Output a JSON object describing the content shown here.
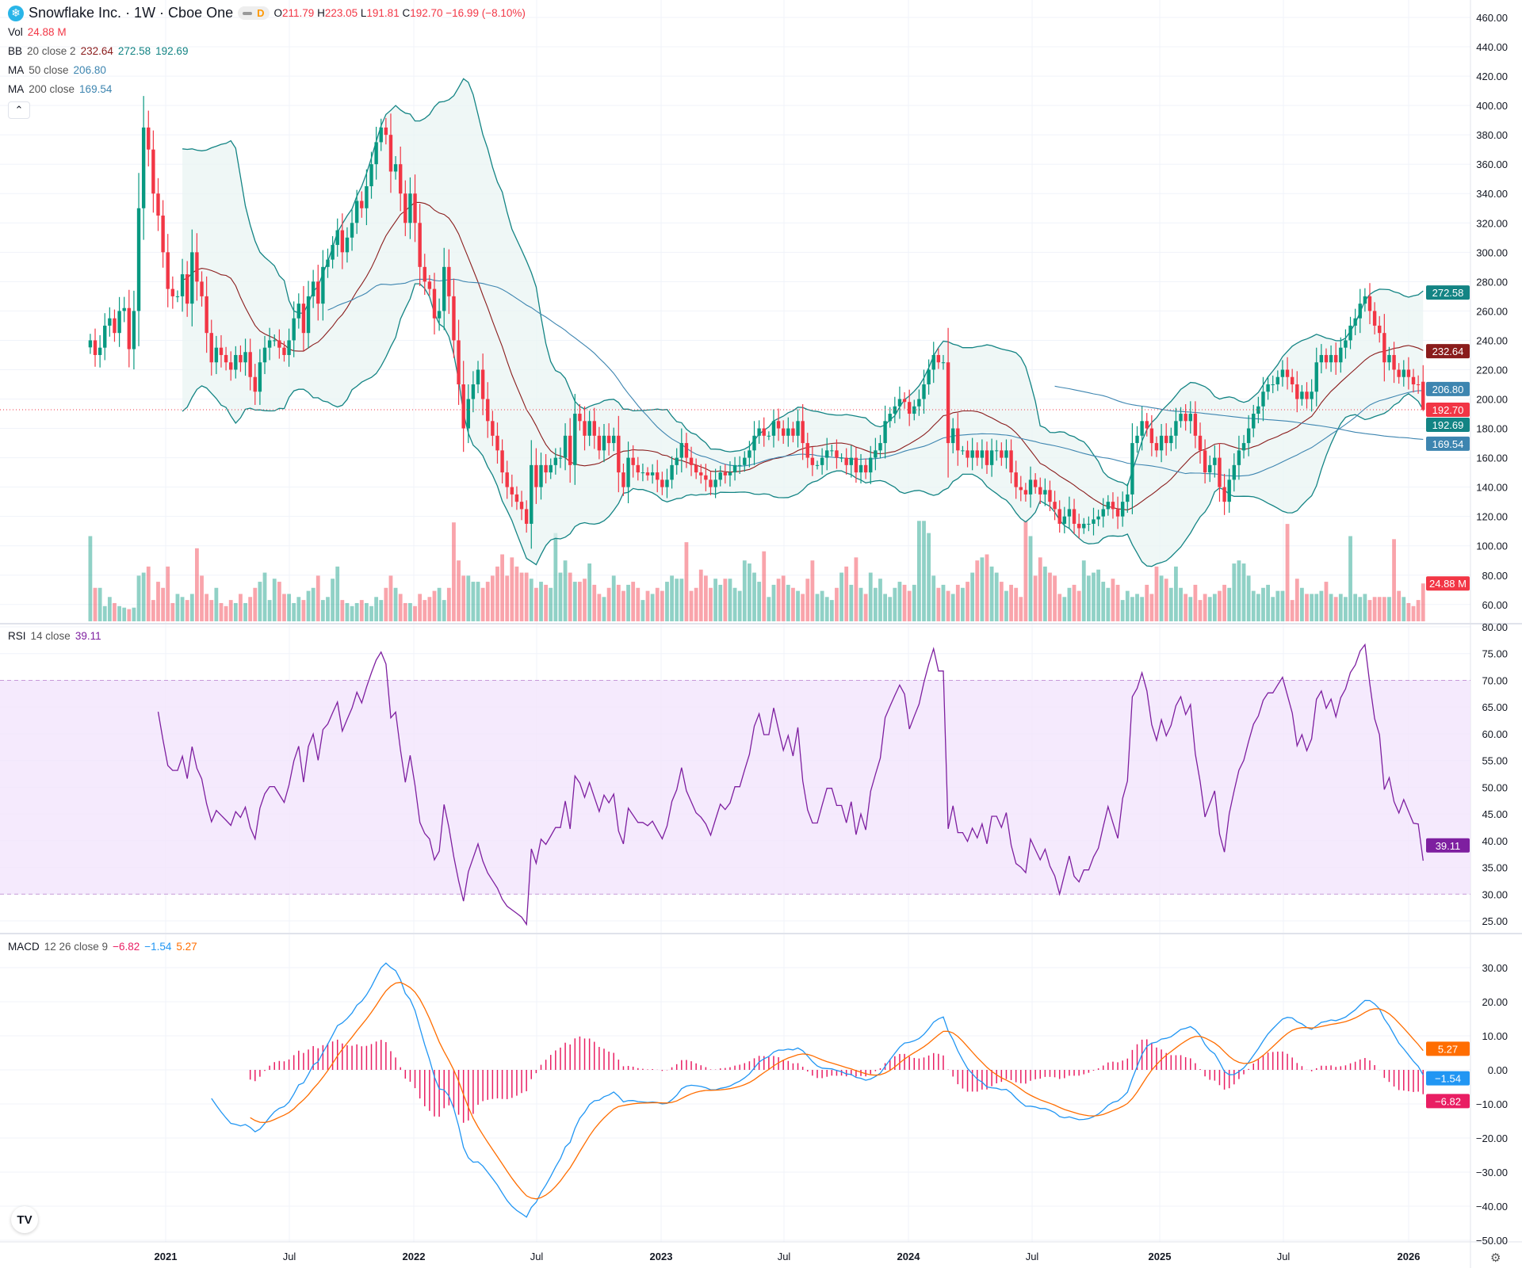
{
  "header": {
    "symbol_title": "Snowflake Inc. · 1W · Cboe One",
    "logo_icon": "snowflake-icon",
    "pill_label": "D",
    "open_label": "O",
    "open": "211.79",
    "high_label": "H",
    "high": "223.05",
    "low_label": "L",
    "low": "191.81",
    "close_label": "C",
    "close": "192.70",
    "change": "−16.99 (−8.10%)"
  },
  "legends": {
    "vol": {
      "label": "Vol",
      "value": "24.88 M"
    },
    "bb": {
      "label": "BB",
      "params": "20 close 2",
      "basis": "232.64",
      "upper": "272.58",
      "lower": "192.69"
    },
    "ma50": {
      "label": "MA",
      "params": "50 close",
      "value": "206.80"
    },
    "ma200": {
      "label": "MA",
      "params": "200 close",
      "value": "169.54"
    },
    "rsi": {
      "label": "RSI",
      "params": "14 close",
      "value": "39.11"
    },
    "macd": {
      "label": "MACD",
      "params": "12 26 close 9",
      "hist": "−6.82",
      "macd": "−1.54",
      "signal": "5.27"
    }
  },
  "colors": {
    "up": "#089981",
    "down": "#f23645",
    "bb_basis": "#8a1c1c",
    "bb_band": "#138484",
    "bb_fill": "#e8f4f2",
    "ma50": "#3d85b0",
    "ma200": "#3d85b0",
    "rsi": "#7e1fa0",
    "rsi_band": "#f3e5fc",
    "macd": "#2196f3",
    "signal": "#ff6d00",
    "hist": "#e91e63"
  },
  "chart_data": {
    "type": "candlestick",
    "interval": "1W",
    "price_axis": {
      "ticks": [
        60,
        80,
        100,
        120,
        140,
        160,
        180,
        200,
        220,
        240,
        260,
        280,
        300,
        320,
        340,
        360,
        380,
        400,
        420,
        440,
        460
      ]
    },
    "rsi_axis": {
      "ticks": [
        25,
        30,
        35,
        40,
        45,
        50,
        55,
        60,
        65,
        70,
        75,
        80
      ],
      "bands": [
        30,
        70
      ]
    },
    "macd_axis": {
      "ticks": [
        -50,
        -40,
        -30,
        -20,
        -10,
        0,
        10,
        20,
        30
      ]
    },
    "time_labels": [
      "2021",
      "Jul",
      "2022",
      "Jul",
      "2023",
      "Jul",
      "2024",
      "Jul",
      "2025",
      "Jul",
      "2026"
    ],
    "last_candle": {
      "open": 211.79,
      "high": 223.05,
      "low": 191.81,
      "close": 192.7
    },
    "closes": [
      240,
      230,
      235,
      250,
      255,
      245,
      260,
      262,
      234,
      260,
      330,
      385,
      370,
      340,
      325,
      300,
      275,
      270,
      270,
      285,
      265,
      300,
      280,
      270,
      245,
      225,
      235,
      230,
      225,
      220,
      230,
      225,
      232,
      215,
      205,
      225,
      235,
      240,
      240,
      235,
      230,
      240,
      255,
      265,
      245,
      270,
      280,
      265,
      290,
      295,
      305,
      315,
      300,
      310,
      320,
      335,
      330,
      345,
      360,
      375,
      385,
      380,
      355,
      360,
      340,
      320,
      340,
      320,
      290,
      280,
      275,
      255,
      260,
      290,
      270,
      240,
      210,
      180,
      200,
      210,
      220,
      200,
      185,
      175,
      165,
      150,
      140,
      135,
      130,
      125,
      115,
      155,
      140,
      155,
      150,
      155,
      160,
      160,
      175,
      155,
      190,
      185,
      175,
      185,
      175,
      165,
      175,
      170,
      175,
      150,
      140,
      160,
      155,
      150,
      150,
      148,
      150,
      145,
      140,
      145,
      155,
      160,
      170,
      160,
      155,
      150,
      148,
      145,
      140,
      145,
      150,
      148,
      150,
      155,
      155,
      160,
      165,
      175,
      180,
      175,
      175,
      185,
      180,
      175,
      180,
      175,
      185,
      170,
      160,
      155,
      155,
      160,
      165,
      165,
      160,
      160,
      155,
      160,
      150,
      155,
      150,
      160,
      165,
      170,
      185,
      190,
      195,
      200,
      198,
      190,
      195,
      200,
      210,
      220,
      230,
      225,
      225,
      170,
      180,
      165,
      165,
      160,
      165,
      160,
      165,
      155,
      165,
      165,
      160,
      165,
      150,
      140,
      138,
      135,
      145,
      140,
      135,
      138,
      130,
      125,
      115,
      120,
      125,
      115,
      112,
      115,
      115,
      118,
      120,
      125,
      130,
      125,
      120,
      130,
      135,
      170,
      175,
      185,
      180,
      170,
      165,
      175,
      170,
      175,
      185,
      190,
      185,
      190,
      175,
      165,
      150,
      155,
      160,
      140,
      130,
      145,
      155,
      165,
      170,
      180,
      190,
      195,
      205,
      210,
      210,
      215,
      220,
      215,
      210,
      200,
      205,
      200,
      205,
      225,
      230,
      225,
      230,
      225,
      235,
      240,
      250,
      255,
      265,
      270,
      260,
      250,
      245,
      225,
      230,
      220,
      215,
      220,
      215,
      210,
      209.69,
      192.7
    ],
    "volumes_millions": [
      56,
      22,
      22,
      10,
      16,
      12,
      10,
      9,
      8,
      9,
      30,
      32,
      36,
      14,
      26,
      22,
      36,
      12,
      18,
      16,
      14,
      18,
      48,
      30,
      18,
      14,
      22,
      12,
      10,
      14,
      12,
      18,
      12,
      16,
      22,
      26,
      32,
      14,
      28,
      26,
      18,
      18,
      12,
      16,
      14,
      20,
      22,
      30,
      14,
      16,
      28,
      36,
      14,
      12,
      10,
      12,
      14,
      12,
      10,
      16,
      14,
      22,
      30,
      22,
      18,
      12,
      12,
      10,
      18,
      14,
      16,
      20,
      22,
      14,
      22,
      65,
      40,
      30,
      30,
      26,
      26,
      22,
      26,
      30,
      36,
      44,
      30,
      42,
      36,
      32,
      32,
      28,
      22,
      26,
      24,
      22,
      58,
      32,
      40,
      32,
      26,
      26,
      28,
      38,
      24,
      18,
      16,
      22,
      30,
      24,
      20,
      24,
      26,
      22,
      14,
      20,
      18,
      22,
      20,
      26,
      30,
      28,
      28,
      52,
      20,
      22,
      34,
      30,
      22,
      28,
      24,
      28,
      28,
      22,
      20,
      40,
      38,
      32,
      26,
      46,
      16,
      24,
      28,
      30,
      24,
      22,
      20,
      18,
      28,
      40,
      18,
      20,
      16,
      14,
      22,
      32,
      36,
      24,
      42,
      22,
      18,
      32,
      22,
      28,
      18,
      16,
      22,
      26,
      24,
      20,
      24,
      66,
      66,
      58,
      30,
      22,
      24,
      20,
      18,
      24,
      22,
      26,
      32,
      40,
      42,
      44,
      36,
      32,
      26,
      20,
      24,
      22,
      16,
      66,
      56,
      30,
      42,
      36,
      32,
      30,
      18,
      16,
      22,
      24,
      20,
      40,
      30,
      32,
      34,
      26,
      22,
      28,
      24,
      14,
      20,
      16,
      18,
      16,
      24,
      18,
      36,
      30,
      28,
      22,
      36,
      22,
      18,
      16,
      24,
      14,
      18,
      16,
      18,
      20,
      24,
      22,
      38,
      40,
      38,
      30,
      20,
      18,
      22,
      24,
      16,
      20,
      20,
      64,
      14,
      28,
      22,
      18,
      18,
      18,
      20,
      26,
      18,
      16,
      18,
      16,
      56,
      18,
      16,
      18,
      14,
      16,
      16,
      16,
      16,
      54,
      20,
      16,
      12,
      10,
      14,
      24.88
    ],
    "indicators": [
      "BB 20 close 2",
      "MA 50 close",
      "MA 200 close",
      "RSI 14 close",
      "MACD 12 26 close 9"
    ]
  }
}
